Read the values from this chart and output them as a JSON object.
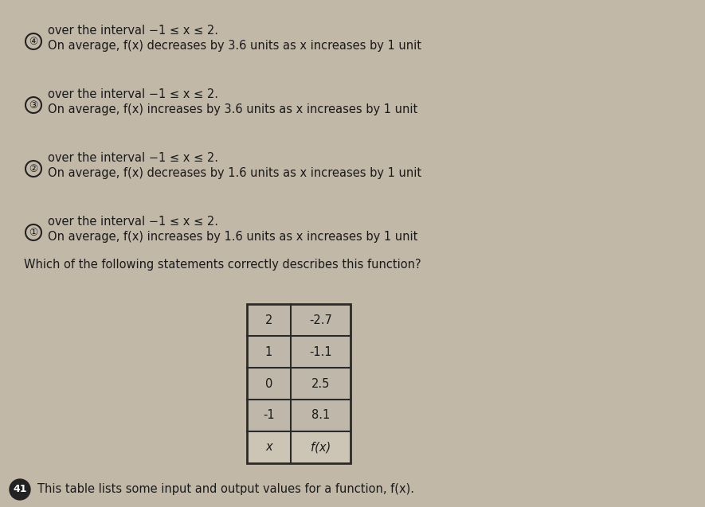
{
  "question_number": "41",
  "intro_text": "This table lists some input and output values for a function, f(x).",
  "table_headers": [
    "x",
    "f(x)"
  ],
  "table_data": [
    [
      "-1",
      "8.1"
    ],
    [
      "0",
      "2.5"
    ],
    [
      "1",
      "-1.1"
    ],
    [
      "2",
      "-2.7"
    ]
  ],
  "question_text": "Which of the following statements correctly describes this function?",
  "options": [
    "On average, f(x) increases by 1.6 units as x increases by 1 unit\nover the interval −1 ≤ x ≤ 2.",
    "On average, f(x) decreases by 1.6 units as x increases by 1 unit\nover the interval −1 ≤ x ≤ 2.",
    "On average, f(x) increases by 3.6 units as x increases by 1 unit\nover the interval −1 ≤ x ≤ 2.",
    "On average, f(x) decreases by 3.6 units as x increases by 1 unit\nover the interval −1 ≤ x ≤ 2."
  ],
  "option_labels": [
    "①",
    "②",
    "③",
    "④"
  ],
  "bg_color": "#c2b8a8",
  "text_color": "#1a1a1a",
  "table_bg_color": "#c8bfb0",
  "table_row_color": "#b8b0a0",
  "table_border_color": "#2a2a2a",
  "font_size_intro": 10.5,
  "font_size_question": 10.5,
  "font_size_options": 10.5,
  "font_size_table": 10.5,
  "font_size_qnum": 9
}
